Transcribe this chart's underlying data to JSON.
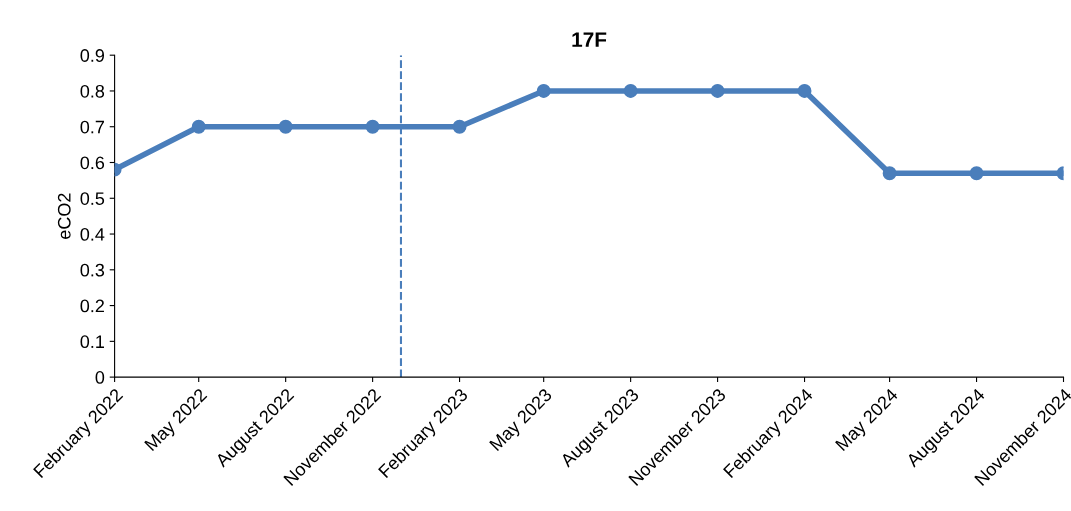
{
  "chart_data": {
    "type": "line",
    "title": "17F",
    "ylabel": "eCO2",
    "x": [
      "2022-02",
      "2022-05",
      "2022-08",
      "2022-11",
      "2023-02",
      "2023-05",
      "2023-08",
      "2023-11",
      "2024-02",
      "2024-05",
      "2024-08",
      "2024-11"
    ],
    "series": [
      {
        "color": "#4a7ebb",
        "values": [
          0.58,
          0.7,
          0.7,
          0.7,
          0.7,
          0.8,
          0.8,
          0.8,
          0.8,
          0.57,
          0.57,
          0.57
        ]
      }
    ],
    "marker": "circle",
    "line_style": "solid",
    "xlim": [
      "2022-02",
      "2024-11"
    ],
    "xticks": [
      {
        "value": "2022-02",
        "label": "February 2022"
      },
      {
        "value": "2022-05",
        "label": "May 2022"
      },
      {
        "value": "2022-08",
        "label": "August 2022"
      },
      {
        "value": "2022-11",
        "label": "November 2022"
      },
      {
        "value": "2023-02",
        "label": "February 2023"
      },
      {
        "value": "2023-05",
        "label": "May 2023"
      },
      {
        "value": "2023-08",
        "label": "August 2023"
      },
      {
        "value": "2023-11",
        "label": "November 2023"
      },
      {
        "value": "2024-02",
        "label": "February 2024"
      },
      {
        "value": "2024-05",
        "label": "May 2024"
      },
      {
        "value": "2024-08",
        "label": "August 2024"
      },
      {
        "value": "2024-11",
        "label": "November 2024"
      }
    ],
    "ylim": [
      0,
      0.9
    ],
    "yticks": [
      0,
      0.1,
      0.2,
      0.3,
      0.4,
      0.5,
      0.6,
      0.7,
      0.8,
      0.9
    ],
    "ref_lines": [
      {
        "axis": "x",
        "value": "2022-12",
        "color": "#4a7ebb",
        "line_style": "dashed"
      }
    ],
    "grid": false,
    "legend": false
  }
}
